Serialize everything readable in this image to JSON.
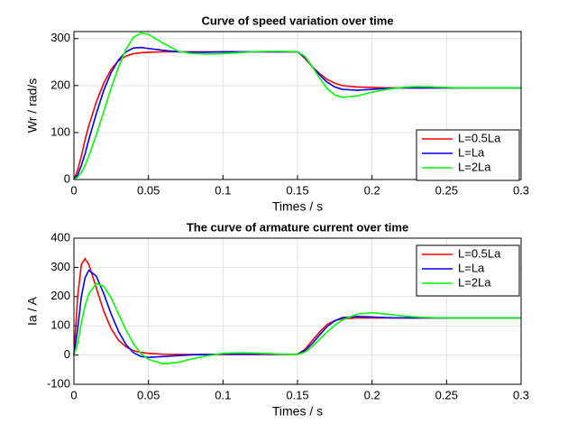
{
  "chart_data": [
    {
      "type": "line",
      "title": "Curve of speed variation over time",
      "xlabel": "Times / s",
      "ylabel": "Wr / rad/s",
      "x": [
        0,
        0.0025,
        0.005,
        0.0075,
        0.01,
        0.015,
        0.02,
        0.025,
        0.03,
        0.035,
        0.04,
        0.045,
        0.05,
        0.06,
        0.07,
        0.08,
        0.09,
        0.1,
        0.11,
        0.12,
        0.13,
        0.14,
        0.15,
        0.155,
        0.16,
        0.165,
        0.17,
        0.175,
        0.18,
        0.19,
        0.2,
        0.21,
        0.22,
        0.23,
        0.24,
        0.25,
        0.26,
        0.28,
        0.3
      ],
      "series": [
        {
          "name": "L=0.5La",
          "color": "#ff0000",
          "values": [
            0,
            20,
            50,
            85,
            115,
            165,
            205,
            235,
            253,
            263,
            268,
            270,
            271,
            272,
            272,
            272,
            272,
            272,
            272,
            272,
            272,
            272,
            272,
            258,
            240,
            225,
            213,
            205,
            200,
            197,
            196,
            195,
            195,
            195,
            195,
            195,
            195,
            195,
            195
          ]
        },
        {
          "name": "L=La",
          "color": "#0000ff",
          "values": [
            0,
            10,
            30,
            55,
            85,
            140,
            190,
            228,
            255,
            272,
            280,
            281,
            279,
            275,
            272,
            271,
            271,
            272,
            272,
            272,
            272,
            272,
            272,
            260,
            240,
            222,
            207,
            197,
            192,
            190,
            192,
            194,
            195,
            195,
            195,
            195,
            195,
            195,
            195
          ]
        },
        {
          "name": "L=2La",
          "color": "#00ff00",
          "values": [
            0,
            5,
            15,
            30,
            50,
            95,
            145,
            195,
            240,
            278,
            303,
            312,
            309,
            290,
            273,
            268,
            267,
            268,
            270,
            272,
            273,
            273,
            272,
            262,
            240,
            215,
            193,
            180,
            175,
            178,
            186,
            192,
            196,
            198,
            197,
            196,
            195,
            195,
            195
          ]
        }
      ],
      "xlim": [
        0,
        0.3
      ],
      "xticks": [
        0,
        0.05,
        0.1,
        0.15,
        0.2,
        0.25,
        0.3
      ],
      "ylim": [
        0,
        315
      ],
      "yticks": [
        0,
        100,
        200,
        300
      ],
      "grid": true,
      "legend": "east"
    },
    {
      "type": "line",
      "title": "The curve of armature current over time",
      "xlabel": "Times / s",
      "ylabel": "Ia / A",
      "x": [
        0,
        0.0025,
        0.005,
        0.0075,
        0.01,
        0.015,
        0.02,
        0.025,
        0.03,
        0.035,
        0.04,
        0.045,
        0.05,
        0.06,
        0.07,
        0.08,
        0.09,
        0.1,
        0.11,
        0.12,
        0.13,
        0.14,
        0.15,
        0.155,
        0.16,
        0.165,
        0.17,
        0.175,
        0.18,
        0.19,
        0.2,
        0.21,
        0.22,
        0.23,
        0.24,
        0.25,
        0.26,
        0.28,
        0.3
      ],
      "series": [
        {
          "name": "L=0.5La",
          "color": "#ff0000",
          "values": [
            0,
            200,
            310,
            330,
            310,
            230,
            150,
            90,
            50,
            28,
            15,
            9,
            6,
            3,
            2,
            2,
            2,
            2,
            2,
            2,
            2,
            2,
            2,
            20,
            50,
            80,
            105,
            118,
            124,
            127,
            127,
            127,
            127,
            127,
            127,
            127,
            127,
            127,
            127
          ]
        },
        {
          "name": "L=La",
          "color": "#0000ff",
          "values": [
            0,
            90,
            200,
            265,
            290,
            270,
            210,
            140,
            80,
            35,
            8,
            -5,
            -8,
            -5,
            -2,
            1,
            2,
            3,
            3,
            3,
            3,
            3,
            3,
            15,
            40,
            70,
            98,
            117,
            128,
            132,
            130,
            128,
            127,
            127,
            127,
            127,
            127,
            127,
            127
          ]
        },
        {
          "name": "L=2La",
          "color": "#00ff00",
          "values": [
            0,
            40,
            110,
            170,
            210,
            245,
            235,
            195,
            140,
            85,
            38,
            5,
            -15,
            -30,
            -25,
            -12,
            -2,
            6,
            8,
            7,
            5,
            3,
            2,
            10,
            30,
            55,
            80,
            102,
            120,
            140,
            145,
            140,
            134,
            130,
            128,
            127,
            127,
            127,
            127
          ]
        }
      ],
      "xlim": [
        0,
        0.3
      ],
      "xticks": [
        0,
        0.05,
        0.1,
        0.15,
        0.2,
        0.25,
        0.3
      ],
      "ylim": [
        -100,
        400
      ],
      "yticks": [
        -100,
        0,
        100,
        200,
        300,
        400
      ],
      "grid": true,
      "legend": "northeast"
    }
  ]
}
